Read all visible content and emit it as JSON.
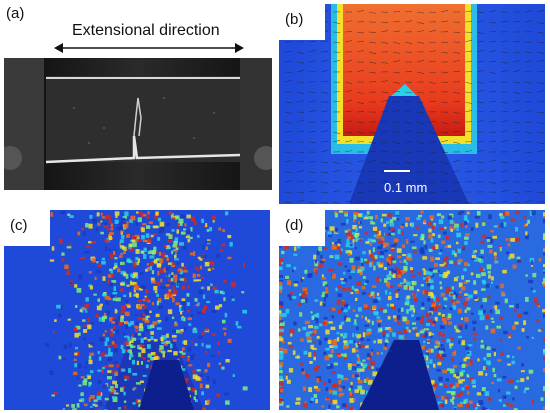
{
  "panels": {
    "a": {
      "label": "(a)",
      "caption": "Extensional direction"
    },
    "b": {
      "label": "(b)",
      "scale_bar": "0.1 mm"
    },
    "c": {
      "label": "(c)"
    },
    "d": {
      "label": "(d)"
    }
  },
  "colors": {
    "field_blue": "#1a3cd0",
    "field_red": "#d8281a",
    "field_orange": "#f06a1a",
    "field_yellow": "#f4e02a",
    "field_cyan": "#2ad0e8"
  }
}
